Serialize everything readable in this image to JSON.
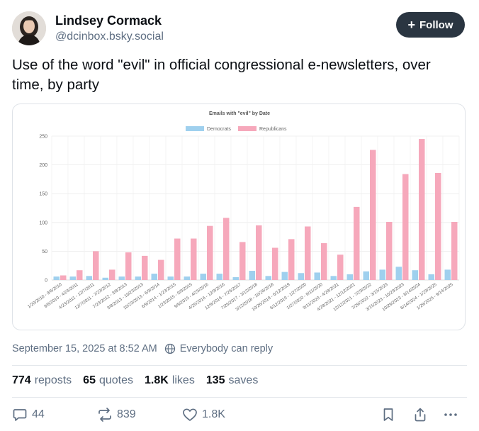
{
  "author": {
    "name": "Lindsey Cormack",
    "handle": "@dcinbox.bsky.social",
    "follow_label": "Follow"
  },
  "post": {
    "text": "Use of the word \"evil\" in official congressional e-newsletters, over time, by party"
  },
  "chart_data": {
    "type": "bar",
    "title": "Emails with \"evil\" by Date",
    "xlabel": "",
    "ylabel": "",
    "ylim": [
      0,
      250
    ],
    "yticks": [
      0,
      50,
      100,
      150,
      200,
      250
    ],
    "legend_position": "top",
    "categories": [
      "1/20/2010 - 9/6/2010",
      "9/6/2010 - 4/23/2011",
      "4/23/2011 - 12/7/2011",
      "12/7/2011 - 7/23/2012",
      "7/23/2012 - 3/8/2013",
      "3/8/2013 - 10/23/2013",
      "10/23/2013 - 6/9/2014",
      "6/9/2014 - 1/23/2015",
      "1/23/2015 - 9/9/2015",
      "9/9/2015 - 4/25/2016",
      "4/25/2016 - 12/9/2016",
      "12/9/2016 - 7/26/2017",
      "7/26/2017 - 3/12/2018",
      "3/12/2018 - 10/26/2018",
      "10/26/2018 - 6/12/2019",
      "6/12/2019 - 1/27/2020",
      "1/27/2020 - 9/11/2020",
      "9/11/2020 - 4/28/2021",
      "4/28/2021 - 12/12/2021",
      "12/12/2021 - 7/29/2022",
      "7/29/2022 - 3/15/2023",
      "3/15/2023 - 10/29/2023",
      "10/29/2023 - 6/14/2024",
      "6/14/2024 - 1/29/2025",
      "1/29/2025 - 9/14/2025"
    ],
    "series": [
      {
        "name": "Democrats",
        "color": "#9fd0ee",
        "values": [
          6,
          6,
          7,
          4,
          6,
          6,
          11,
          6,
          6,
          11,
          11,
          5,
          16,
          7,
          14,
          12,
          13,
          7,
          10,
          15,
          18,
          23,
          17,
          10,
          18
        ]
      },
      {
        "name": "Republicans",
        "color": "#f6a8bb",
        "values": [
          8,
          17,
          50,
          18,
          48,
          42,
          35,
          72,
          72,
          94,
          108,
          66,
          95,
          56,
          71,
          93,
          64,
          44,
          127,
          226,
          101,
          184,
          245,
          186,
          101
        ]
      }
    ]
  },
  "meta": {
    "timestamp": "September 15, 2025 at 8:52 AM",
    "reply_setting": "Everybody can reply"
  },
  "stats": {
    "reposts_count": "774",
    "reposts_label": "reposts",
    "quotes_count": "65",
    "quotes_label": "quotes",
    "likes_count": "1.8K",
    "likes_label": "likes",
    "saves_count": "135",
    "saves_label": "saves"
  },
  "actions": {
    "replies": "44",
    "reposts": "839",
    "likes": "1.8K"
  },
  "colors": {
    "follow_bg": "#2a3541",
    "muted_text": "#5e6e82",
    "democrats": "#9fd0ee",
    "republicans": "#f6a8bb"
  }
}
